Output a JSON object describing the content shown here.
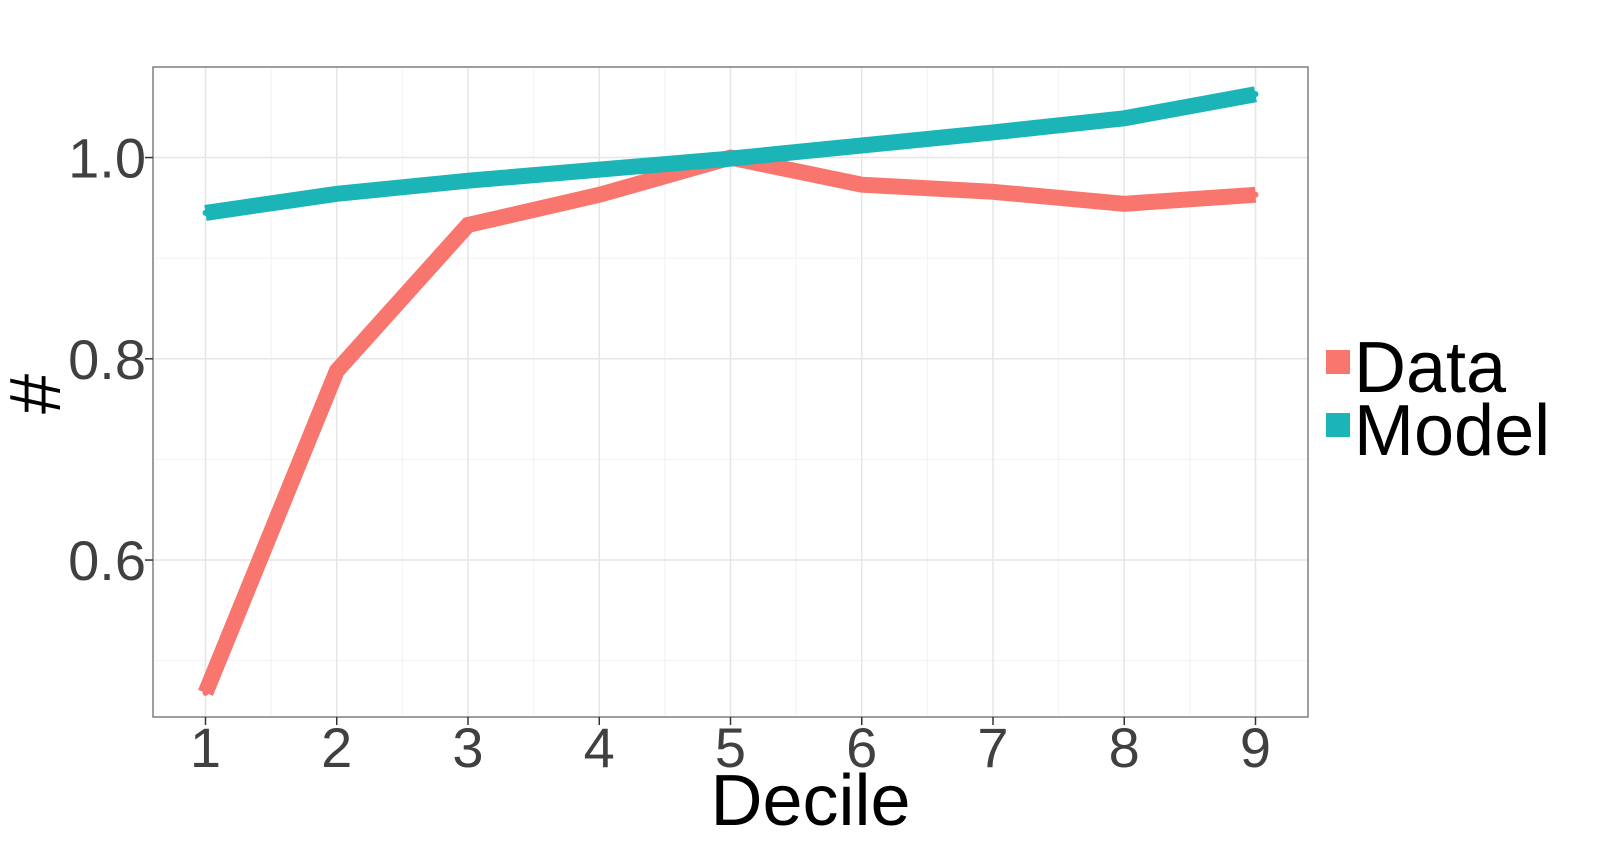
{
  "chart_data": {
    "type": "line",
    "title": "",
    "xlabel": "Decile",
    "ylabel": "#",
    "x": [
      1,
      2,
      3,
      4,
      5,
      6,
      7,
      8,
      9
    ],
    "xlim": [
      0.6,
      9.4
    ],
    "ylim": [
      0.444,
      1.09
    ],
    "xticks": [
      1,
      2,
      3,
      4,
      5,
      6,
      7,
      8,
      9
    ],
    "yticks": [
      0.6,
      0.8,
      1.0
    ],
    "ytick_labels": [
      "0.6",
      "0.8",
      "1.0"
    ],
    "grid": true,
    "legend_position": "right",
    "series": [
      {
        "name": "Data",
        "color": "#F8766D",
        "values": [
          0.468,
          0.788,
          0.933,
          0.963,
          1.0,
          0.973,
          0.966,
          0.954,
          0.963
        ]
      },
      {
        "name": "Model",
        "color": "#1BB5B8",
        "values": [
          0.945,
          0.964,
          0.977,
          0.988,
          0.999,
          1.012,
          1.025,
          1.039,
          1.063
        ]
      }
    ]
  }
}
